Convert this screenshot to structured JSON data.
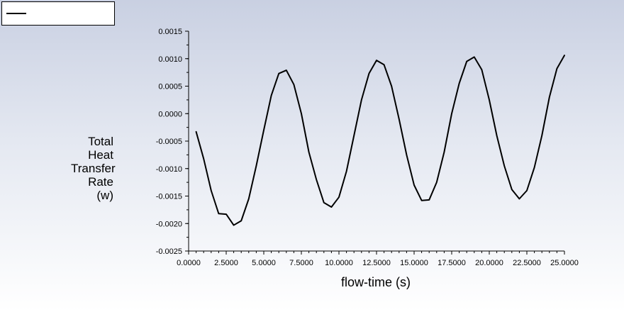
{
  "legend": {
    "series_label": "",
    "line_color": "#000000"
  },
  "chart_data": {
    "type": "line",
    "title": "",
    "xlabel": "flow-time (s)",
    "ylabel_lines": [
      "Total",
      "Heat",
      "Transfer",
      "Rate",
      "(w)"
    ],
    "xlim": [
      0,
      25
    ],
    "ylim": [
      -0.0025,
      0.0015
    ],
    "x_ticks": [
      "0.0000",
      "2.5000",
      "5.0000",
      "7.5000",
      "10.0000",
      "12.5000",
      "15.0000",
      "17.5000",
      "20.0000",
      "22.5000",
      "25.0000"
    ],
    "y_ticks": [
      "0.0015",
      "0.0010",
      "0.0005",
      "0.0000",
      "-0.0005",
      "-0.0010",
      "-0.0015",
      "-0.0020",
      "-0.0025"
    ],
    "grid": false,
    "legend_position": "top-left",
    "series": [
      {
        "color": "#000000",
        "x": [
          0.5,
          1.0,
          1.5,
          2.0,
          2.5,
          3.0,
          3.5,
          4.0,
          4.5,
          5.0,
          5.5,
          6.0,
          6.5,
          7.0,
          7.5,
          8.0,
          8.5,
          9.0,
          9.5,
          10.0,
          10.5,
          11.0,
          11.5,
          12.0,
          12.5,
          13.0,
          13.5,
          14.0,
          14.5,
          15.0,
          15.5,
          16.0,
          16.5,
          17.0,
          17.5,
          18.0,
          18.5,
          19.0,
          19.5,
          20.0,
          20.5,
          21.0,
          21.5,
          22.0,
          22.5,
          23.0,
          23.5,
          24.0,
          24.5,
          25.0
        ],
        "values": [
          -0.00033,
          -0.00082,
          -0.0014,
          -0.00182,
          -0.00183,
          -0.00203,
          -0.00195,
          -0.00155,
          -0.00095,
          -0.0003,
          0.00033,
          0.00073,
          0.00079,
          0.00053,
          0.0,
          -0.0007,
          -0.0012,
          -0.00162,
          -0.0017,
          -0.00152,
          -0.00105,
          -0.0004,
          0.00025,
          0.00073,
          0.00097,
          0.00089,
          0.0005,
          -0.0001,
          -0.00075,
          -0.0013,
          -0.00158,
          -0.00157,
          -0.00125,
          -0.0007,
          0.0,
          0.00055,
          0.00095,
          0.00103,
          0.0008,
          0.00025,
          -0.0004,
          -0.00095,
          -0.00138,
          -0.00155,
          -0.0014,
          -0.00098,
          -0.0004,
          0.0003,
          0.00082,
          0.00106
        ]
      }
    ]
  }
}
